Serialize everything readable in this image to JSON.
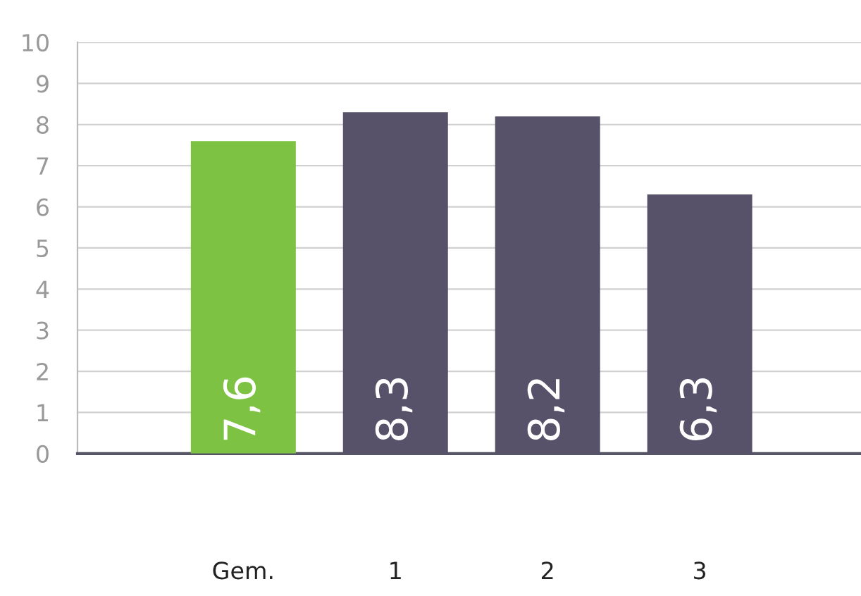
{
  "chart_data": {
    "type": "bar",
    "categories": [
      "Gem.",
      "1",
      "2",
      "3"
    ],
    "values": [
      7.6,
      8.3,
      8.2,
      6.3
    ],
    "colors": [
      "#7dc242",
      "#57526a",
      "#57526a",
      "#57526a"
    ],
    "value_labels": [
      "7,6",
      "8,3",
      "8,2",
      "6,3"
    ],
    "ylim": [
      0,
      10
    ],
    "yticks": [
      0,
      1,
      2,
      3,
      4,
      5,
      6,
      7,
      8,
      9,
      10
    ],
    "grid": "y"
  }
}
